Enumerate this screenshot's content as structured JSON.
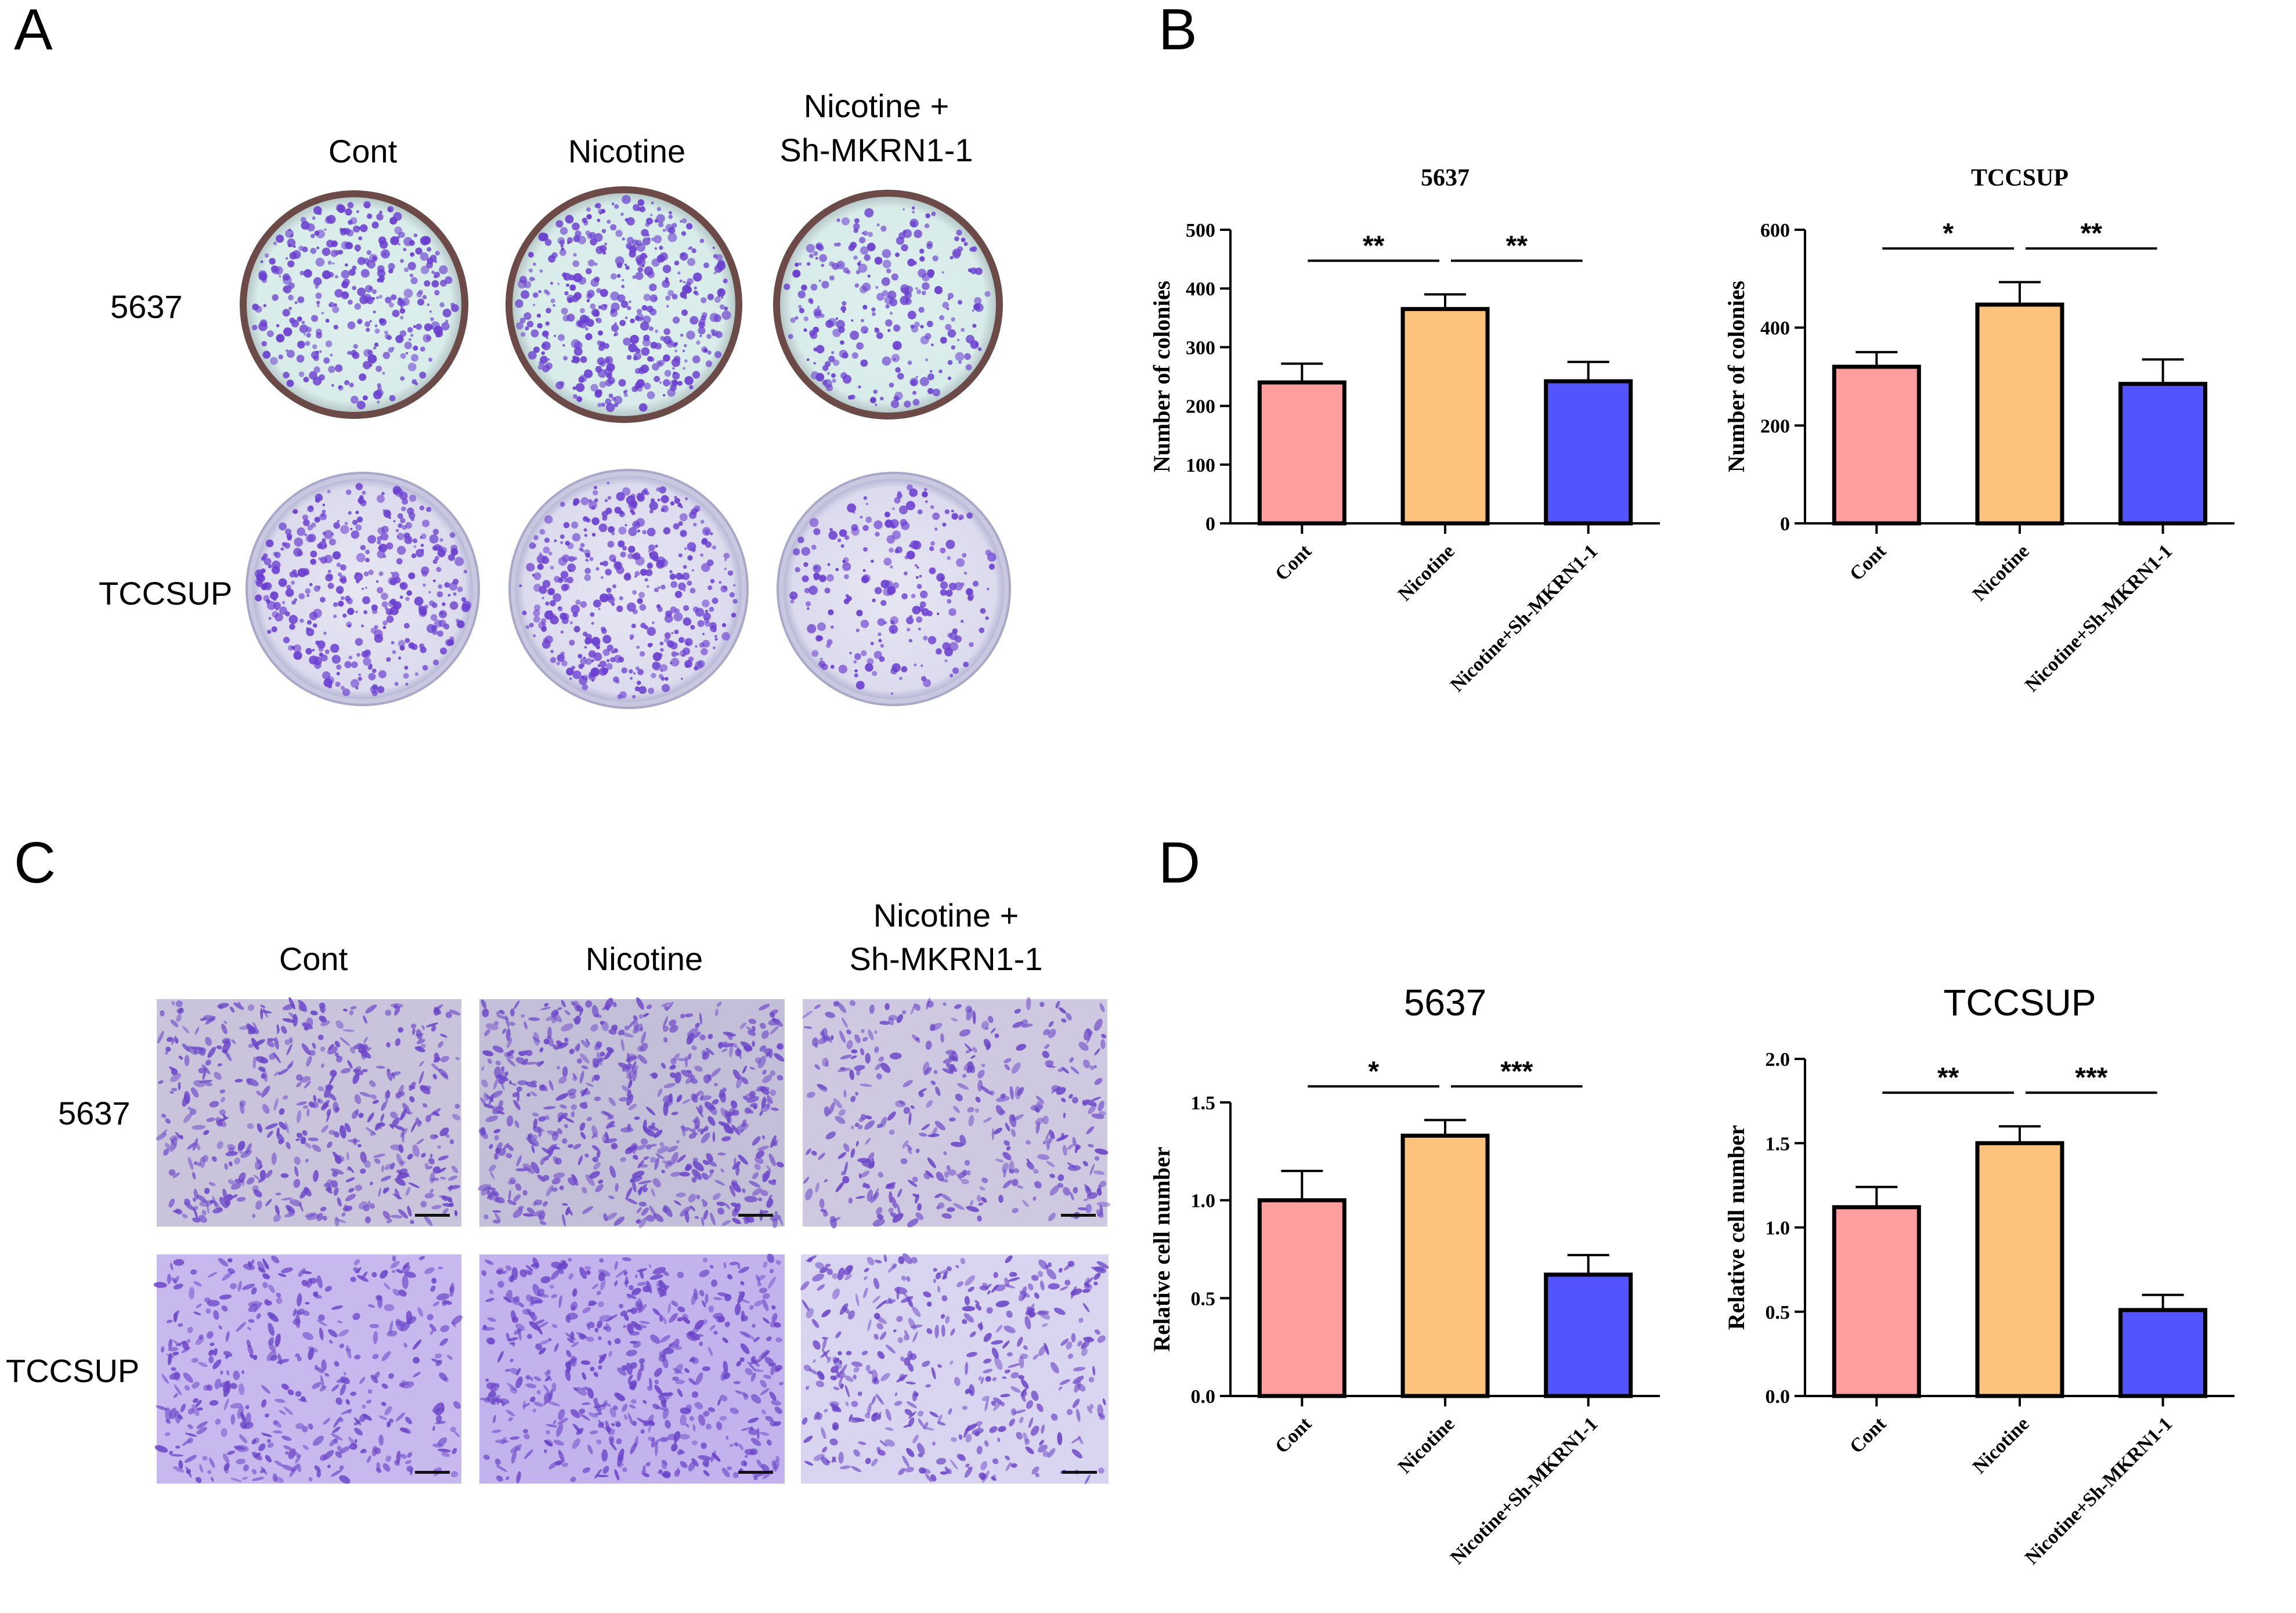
{
  "panels": {
    "a": {
      "letter": "A"
    },
    "b": {
      "letter": "B"
    },
    "c": {
      "letter": "C"
    },
    "d": {
      "letter": "D"
    }
  },
  "photos": {
    "col_labels": {
      "cont": "Cont",
      "nicotine": "Nicotine",
      "combo_line1": "Nicotine +",
      "combo_line2": "Sh-MKRN1-1"
    },
    "row_labels": {
      "r5637": "5637",
      "tccsup": "TCCSUP"
    },
    "colors": {
      "stain": "#6a3fd0",
      "dish_rim": "#6b4a48",
      "dish_bg": "#dff0ee",
      "dish_bg2": "#e7e6f2",
      "well_bg": "#cfc7e6"
    }
  },
  "chart_data": [
    {
      "type": "bar",
      "title": "5637",
      "ylabel": "Number of colonies",
      "categories": [
        "Cont",
        "Nicotine",
        "Nicotine+Sh-MKRN1-1"
      ],
      "values": [
        240,
        365,
        242
      ],
      "errors": [
        32,
        25,
        33
      ],
      "ylim": [
        0,
        500
      ],
      "yticks": [
        "0",
        "100",
        "200",
        "300",
        "400",
        "500"
      ],
      "significance": [
        "**",
        "**"
      ],
      "colors": [
        "#ff9e9e",
        "#fdc27c",
        "#5454ff"
      ]
    },
    {
      "type": "bar",
      "title": "TCCSUP",
      "ylabel": "Number of colonies",
      "categories": [
        "Cont",
        "Nicotine",
        "Nicotine+Sh-MKRN1-1"
      ],
      "values": [
        320,
        447,
        285
      ],
      "errors": [
        30,
        46,
        50
      ],
      "ylim": [
        0,
        600
      ],
      "yticks": [
        "0",
        "200",
        "400",
        "600"
      ],
      "significance": [
        "*",
        "**"
      ],
      "colors": [
        "#ff9e9e",
        "#fdc27c",
        "#5454ff"
      ]
    },
    {
      "type": "bar",
      "title": "5637",
      "ylabel": "Relative cell number",
      "categories": [
        "Cont",
        "Nicotine",
        "Nicotine+Sh-MKRN1-1"
      ],
      "values": [
        1.0,
        1.33,
        0.62
      ],
      "errors": [
        0.15,
        0.08,
        0.1
      ],
      "ylim": [
        0,
        1.5
      ],
      "yticks": [
        "0.0",
        "0.5",
        "1.0",
        "1.5"
      ],
      "significance": [
        "*",
        "***"
      ],
      "colors": [
        "#ff9e9e",
        "#fdc27c",
        "#5454ff"
      ]
    },
    {
      "type": "bar",
      "title": "TCCSUP",
      "ylabel": "Relative cell number",
      "categories": [
        "Cont",
        "Nicotine",
        "Nicotine+Sh-MKRN1-1"
      ],
      "values": [
        1.12,
        1.5,
        0.51
      ],
      "errors": [
        0.12,
        0.1,
        0.09
      ],
      "ylim": [
        0,
        2.0
      ],
      "yticks": [
        "0.0",
        "0.5",
        "1.0",
        "1.5",
        "2.0"
      ],
      "significance": [
        "**",
        "***"
      ],
      "colors": [
        "#ff9e9e",
        "#fdc27c",
        "#5454ff"
      ]
    }
  ]
}
